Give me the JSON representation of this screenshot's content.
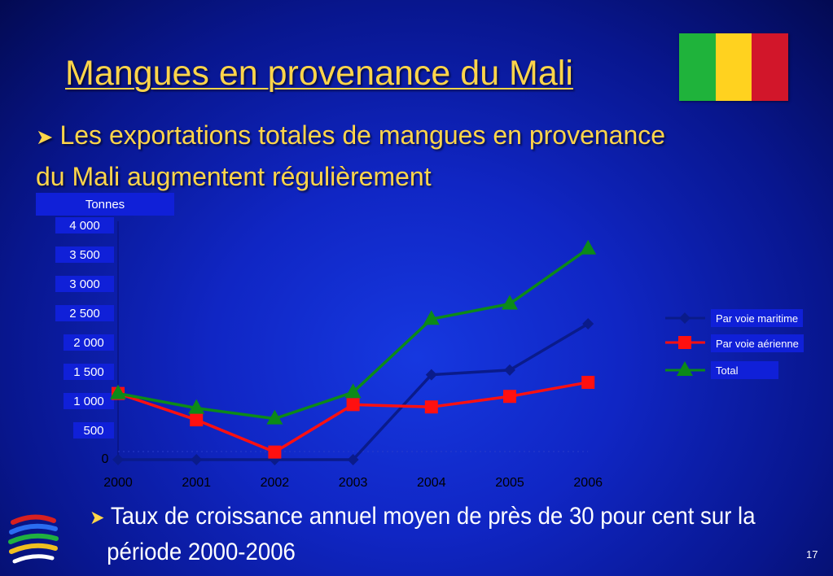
{
  "slide": {
    "title": "Mangues en provenance du Mali",
    "subtitle_line1": "Les exportations totales de mangues en provenance",
    "subtitle_line2": "du Mali augmentent régulièrement",
    "bottom_line1": "Taux de croissance annuel moyen de près de 30 pour cent sur la",
    "bottom_line2": "période 2000-2006",
    "page_number": "17",
    "bullet_icon": "arrow-bullet-icon",
    "logo_icon": "wto-logo-icon",
    "flag_colors": [
      "#1fb33b",
      "#ffd21f",
      "#d2162a"
    ],
    "colors": {
      "background": "#1026c4",
      "title": "#ffd54a",
      "label_box": "#1020d8"
    }
  },
  "chart_data": {
    "type": "line",
    "ylabel": "Tonnes",
    "categories": [
      "2000",
      "2001",
      "2002",
      "2003",
      "2004",
      "2005",
      "2006"
    ],
    "y_ticks": [
      "0",
      "500",
      "1 000",
      "1 500",
      "2 000",
      "2 500",
      "3 000",
      "3 500",
      "4 000"
    ],
    "ylim": [
      0,
      4000
    ],
    "legend_position": "right",
    "series": [
      {
        "name": "Par voie maritime",
        "values": [
          0,
          0,
          0,
          0,
          1450,
          1530,
          2320
        ],
        "color": "#0a1b8a",
        "marker": "diamond"
      },
      {
        "name": "Par voie aérienne",
        "values": [
          1130,
          680,
          130,
          940,
          900,
          1080,
          1320
        ],
        "color": "#ff1010",
        "marker": "square"
      },
      {
        "name": "Total",
        "values": [
          1130,
          880,
          700,
          1150,
          2400,
          2660,
          3600
        ],
        "color": "#0c8a18",
        "marker": "triangle"
      }
    ]
  }
}
